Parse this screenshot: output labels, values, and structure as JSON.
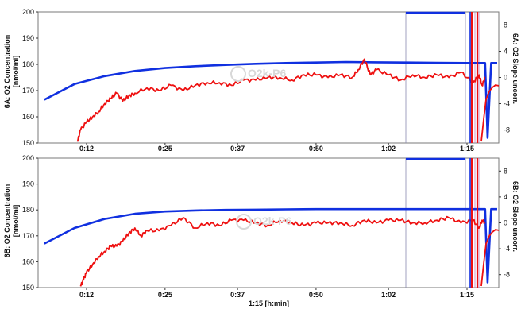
{
  "chart_data": [
    {
      "type": "line",
      "panel": "A",
      "left_axis_label_line1": "6A: O2 Concentration",
      "left_axis_label_line2": "[nmol/ml]",
      "right_axis_label": "6A: O2 Slope uncorr.",
      "x_axis_label": "1:15 [h:min]",
      "watermark": "O2k-P6",
      "ylim": [
        150,
        200
      ],
      "y_ticks": [
        "150",
        "160",
        "170",
        "180",
        "190",
        "200"
      ],
      "y2lim": [
        -10,
        10
      ],
      "y2_ticks": [
        "8",
        "4",
        "0",
        "-4",
        "-8"
      ],
      "x_ticks": [
        "0:12",
        "0:25",
        "0:37",
        "0:50",
        "1:02",
        "1:15"
      ],
      "series": [
        {
          "color": "#1030e0",
          "x_min": [
            5,
            10,
            15,
            20,
            25,
            30,
            35,
            40,
            45,
            50,
            55,
            60,
            65,
            70,
            75,
            78,
            78.4,
            79,
            80
          ],
          "values": [
            166.5,
            172.5,
            175.5,
            177.5,
            178.6,
            179.3,
            179.8,
            180.2,
            180.5,
            180.7,
            180.9,
            180.8,
            180.7,
            180.6,
            180.5,
            180.5,
            152,
            180.5,
            180.5
          ]
        },
        {
          "color": "#ee1010",
          "x_min": [
            10.5,
            11,
            12,
            13,
            14,
            15,
            16,
            17,
            18,
            19,
            20,
            22,
            24,
            26,
            28,
            30,
            32,
            34,
            36,
            38,
            40,
            42,
            44,
            46,
            48,
            50,
            52,
            54,
            56,
            57,
            58,
            59,
            60,
            62,
            64,
            66,
            68,
            70,
            72,
            74,
            76,
            77,
            77.5,
            78
          ],
          "values": [
            150.5,
            155,
            158,
            160,
            162,
            165,
            167,
            169,
            166,
            168,
            169,
            171,
            170,
            172,
            170,
            172,
            173,
            173,
            172,
            174,
            174,
            175,
            175,
            174,
            176,
            176,
            175,
            176,
            175,
            178,
            182,
            176,
            178,
            176,
            174,
            176,
            175,
            176,
            175,
            177,
            173,
            176,
            172,
            175
          ]
        }
      ]
    },
    {
      "type": "line",
      "panel": "B",
      "left_axis_label_line1": "6B: O2 Concentration",
      "left_axis_label_line2": "[nmol/ml]",
      "right_axis_label": "6B: O2 Slope uncorr.",
      "x_axis_label": "1:15 [h:min]",
      "watermark": "O2k-P6",
      "ylim": [
        150,
        200
      ],
      "y_ticks": [
        "150",
        "160",
        "170",
        "180",
        "190",
        "200"
      ],
      "y2lim": [
        -10,
        10
      ],
      "y2_ticks": [
        "8",
        "4",
        "0",
        "-4",
        "-8"
      ],
      "x_ticks": [
        "0:12",
        "0:25",
        "0:37",
        "0:50",
        "1:02",
        "1:15"
      ],
      "series": [
        {
          "color": "#1030e0",
          "x_min": [
            5,
            10,
            15,
            20,
            25,
            30,
            35,
            40,
            45,
            50,
            55,
            60,
            65,
            70,
            75,
            78,
            78.4,
            79,
            80
          ],
          "values": [
            167,
            173,
            176.5,
            178.5,
            179.4,
            179.8,
            180.0,
            180.1,
            180.2,
            180.3,
            180.3,
            180.3,
            180.3,
            180.3,
            180.3,
            180.3,
            152,
            180.3,
            180.3
          ]
        },
        {
          "color": "#ee1010",
          "x_min": [
            11,
            11.5,
            12,
            13,
            14,
            15,
            16,
            17,
            18,
            19,
            20,
            21,
            22,
            24,
            26,
            28,
            30,
            32,
            34,
            36,
            38,
            40,
            42,
            44,
            46,
            48,
            50,
            52,
            54,
            56,
            58,
            60,
            62,
            64,
            66,
            68,
            70,
            72,
            74,
            76,
            77,
            77.5,
            78
          ],
          "values": [
            150.5,
            153,
            156,
            159,
            162,
            164,
            166,
            166,
            168,
            171,
            173,
            170,
            172,
            172,
            174,
            177,
            173,
            175,
            174,
            176,
            176,
            175,
            174,
            176,
            175,
            174,
            175,
            175,
            175,
            174,
            176,
            175,
            176,
            176,
            175,
            175,
            176,
            177,
            175,
            176,
            173,
            176,
            175
          ]
        }
      ]
    }
  ]
}
